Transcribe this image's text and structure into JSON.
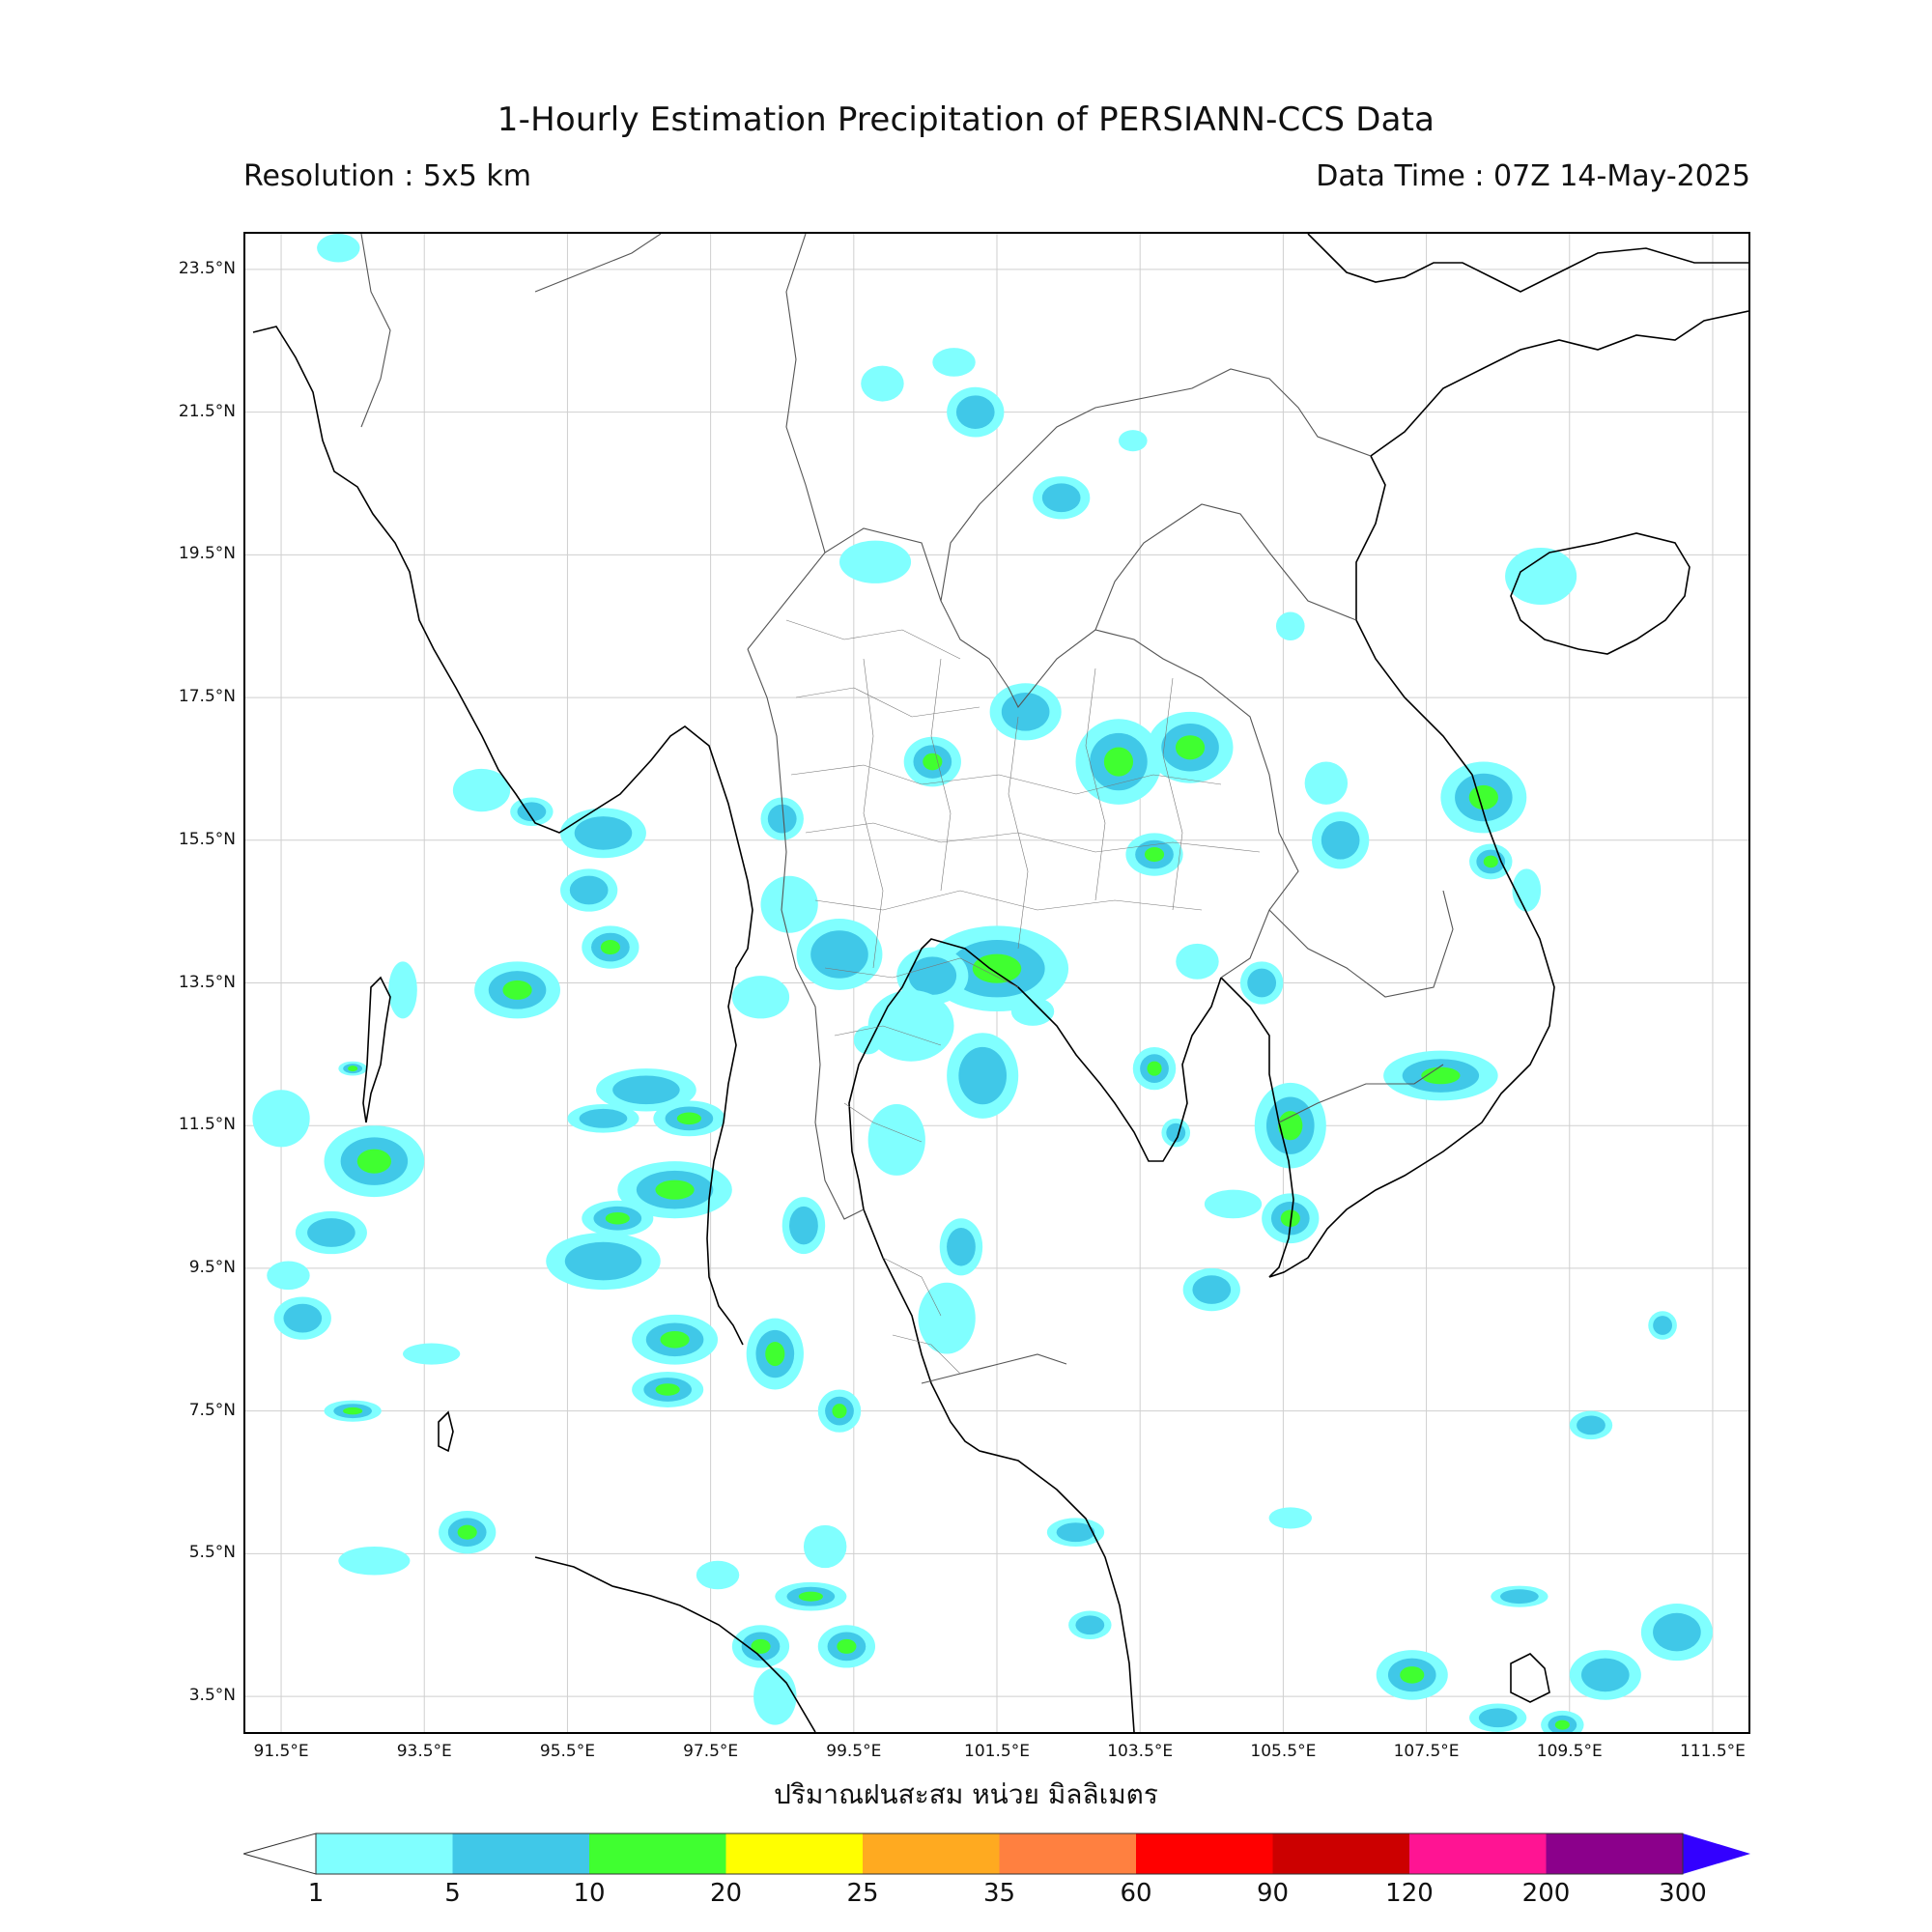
{
  "header": {
    "title": "1-Hourly Estimation Precipitation of PERSIANN-CCS Data",
    "resolution": "Resolution : 5x5 km",
    "data_time": "Data Time : 07Z 14-May-2025"
  },
  "map": {
    "lon_range": [
      91.0,
      112.0
    ],
    "lat_range": [
      3.0,
      24.0
    ],
    "x_ticks": [
      "91.5°E",
      "93.5°E",
      "95.5°E",
      "97.5°E",
      "99.5°E",
      "101.5°E",
      "103.5°E",
      "105.5°E",
      "107.5°E",
      "109.5°E",
      "111.5°E"
    ],
    "y_ticks": [
      "23.5°N",
      "21.5°N",
      "19.5°N",
      "17.5°N",
      "15.5°N",
      "13.5°N",
      "11.5°N",
      "9.5°N",
      "7.5°N",
      "5.5°N",
      "3.5°N"
    ],
    "x_tick_values": [
      91.5,
      93.5,
      95.5,
      97.5,
      99.5,
      101.5,
      103.5,
      105.5,
      107.5,
      109.5,
      111.5
    ],
    "y_tick_values": [
      23.5,
      21.5,
      19.5,
      17.5,
      15.5,
      13.5,
      11.5,
      9.5,
      7.5,
      5.5,
      3.5
    ],
    "grid": true
  },
  "xlabel": "ปริมาณฝนสะสม หน่วย มิลลิเมตร",
  "colorbar": {
    "levels": [
      "1",
      "5",
      "10",
      "20",
      "25",
      "35",
      "60",
      "90",
      "120",
      "200",
      "300"
    ],
    "colors": [
      "#80ffff",
      "#40c8e8",
      "#40ff30",
      "#ffff00",
      "#ffaa20",
      "#ff8040",
      "#ff0000",
      "#cc0000",
      "#ff1493",
      "#8b008b",
      "#3300ff"
    ],
    "under_color": "#ffffff"
  },
  "rain_cells": [
    {
      "lon": 92.8,
      "lat": 11.0,
      "rx": 0.7,
      "ry": 0.5,
      "level": 3
    },
    {
      "lon": 92.2,
      "lat": 10.0,
      "rx": 0.5,
      "ry": 0.3,
      "level": 2
    },
    {
      "lon": 93.2,
      "lat": 13.4,
      "rx": 0.2,
      "ry": 0.4,
      "level": 1
    },
    {
      "lon": 94.8,
      "lat": 13.4,
      "rx": 0.6,
      "ry": 0.4,
      "level": 3
    },
    {
      "lon": 96.0,
      "lat": 15.6,
      "rx": 0.6,
      "ry": 0.35,
      "level": 2
    },
    {
      "lon": 96.1,
      "lat": 14.0,
      "rx": 0.4,
      "ry": 0.3,
      "level": 3
    },
    {
      "lon": 95.8,
      "lat": 14.8,
      "rx": 0.4,
      "ry": 0.3,
      "level": 2
    },
    {
      "lon": 96.6,
      "lat": 12.0,
      "rx": 0.7,
      "ry": 0.3,
      "level": 2
    },
    {
      "lon": 97.2,
      "lat": 11.6,
      "rx": 0.5,
      "ry": 0.25,
      "level": 4
    },
    {
      "lon": 96.0,
      "lat": 11.6,
      "rx": 0.5,
      "ry": 0.2,
      "level": 2
    },
    {
      "lon": 97.0,
      "lat": 10.6,
      "rx": 0.8,
      "ry": 0.4,
      "level": 3
    },
    {
      "lon": 96.0,
      "lat": 9.6,
      "rx": 0.8,
      "ry": 0.4,
      "level": 2
    },
    {
      "lon": 96.2,
      "lat": 10.2,
      "rx": 0.5,
      "ry": 0.25,
      "level": 3
    },
    {
      "lon": 97.0,
      "lat": 8.5,
      "rx": 0.6,
      "ry": 0.35,
      "level": 3
    },
    {
      "lon": 96.9,
      "lat": 7.8,
      "rx": 0.5,
      "ry": 0.25,
      "level": 3
    },
    {
      "lon": 98.4,
      "lat": 8.3,
      "rx": 0.4,
      "ry": 0.5,
      "level": 3
    },
    {
      "lon": 98.2,
      "lat": 13.3,
      "rx": 0.4,
      "ry": 0.3,
      "level": 1
    },
    {
      "lon": 98.6,
      "lat": 14.6,
      "rx": 0.4,
      "ry": 0.4,
      "level": 1
    },
    {
      "lon": 98.5,
      "lat": 15.8,
      "rx": 0.3,
      "ry": 0.3,
      "level": 2
    },
    {
      "lon": 99.3,
      "lat": 13.9,
      "rx": 0.6,
      "ry": 0.5,
      "level": 2
    },
    {
      "lon": 101.5,
      "lat": 13.7,
      "rx": 1.0,
      "ry": 0.6,
      "level": 3
    },
    {
      "lon": 100.6,
      "lat": 13.6,
      "rx": 0.5,
      "ry": 0.4,
      "level": 2
    },
    {
      "lon": 101.3,
      "lat": 12.2,
      "rx": 0.5,
      "ry": 0.6,
      "level": 2
    },
    {
      "lon": 100.3,
      "lat": 12.9,
      "rx": 0.6,
      "ry": 0.5,
      "level": 1
    },
    {
      "lon": 100.6,
      "lat": 16.6,
      "rx": 0.4,
      "ry": 0.35,
      "level": 4
    },
    {
      "lon": 101.9,
      "lat": 17.3,
      "rx": 0.5,
      "ry": 0.4,
      "level": 2
    },
    {
      "lon": 103.2,
      "lat": 16.6,
      "rx": 0.6,
      "ry": 0.6,
      "level": 3
    },
    {
      "lon": 104.2,
      "lat": 16.8,
      "rx": 0.6,
      "ry": 0.5,
      "level": 4
    },
    {
      "lon": 103.7,
      "lat": 15.3,
      "rx": 0.4,
      "ry": 0.3,
      "level": 3
    },
    {
      "lon": 102.4,
      "lat": 20.3,
      "rx": 0.4,
      "ry": 0.3,
      "level": 2
    },
    {
      "lon": 99.8,
      "lat": 19.4,
      "rx": 0.5,
      "ry": 0.3,
      "level": 1
    },
    {
      "lon": 101.2,
      "lat": 21.5,
      "rx": 0.4,
      "ry": 0.35,
      "level": 2
    },
    {
      "lon": 99.9,
      "lat": 21.9,
      "rx": 0.3,
      "ry": 0.25,
      "level": 1
    },
    {
      "lon": 100.9,
      "lat": 22.2,
      "rx": 0.3,
      "ry": 0.2,
      "level": 1
    },
    {
      "lon": 109.1,
      "lat": 19.2,
      "rx": 0.5,
      "ry": 0.4,
      "level": 1
    },
    {
      "lon": 108.3,
      "lat": 16.1,
      "rx": 0.6,
      "ry": 0.5,
      "level": 3
    },
    {
      "lon": 108.4,
      "lat": 15.2,
      "rx": 0.3,
      "ry": 0.25,
      "level": 4
    },
    {
      "lon": 107.7,
      "lat": 12.2,
      "rx": 0.8,
      "ry": 0.35,
      "level": 3
    },
    {
      "lon": 105.6,
      "lat": 11.5,
      "rx": 0.5,
      "ry": 0.6,
      "level": 3
    },
    {
      "lon": 105.6,
      "lat": 10.2,
      "rx": 0.4,
      "ry": 0.35,
      "level": 3
    },
    {
      "lon": 104.5,
      "lat": 9.2,
      "rx": 0.4,
      "ry": 0.3,
      "level": 2
    },
    {
      "lon": 103.7,
      "lat": 12.3,
      "rx": 0.3,
      "ry": 0.3,
      "level": 3
    },
    {
      "lon": 100.1,
      "lat": 11.3,
      "rx": 0.4,
      "ry": 0.5,
      "level": 1
    },
    {
      "lon": 100.8,
      "lat": 8.8,
      "rx": 0.4,
      "ry": 0.5,
      "level": 1
    },
    {
      "lon": 101.0,
      "lat": 9.8,
      "rx": 0.3,
      "ry": 0.4,
      "level": 2
    },
    {
      "lon": 98.2,
      "lat": 4.2,
      "rx": 0.4,
      "ry": 0.3,
      "level": 3
    },
    {
      "lon": 98.9,
      "lat": 4.9,
      "rx": 0.5,
      "ry": 0.2,
      "level": 3
    },
    {
      "lon": 99.4,
      "lat": 4.2,
      "rx": 0.4,
      "ry": 0.3,
      "level": 3
    },
    {
      "lon": 98.4,
      "lat": 3.5,
      "rx": 0.3,
      "ry": 0.4,
      "level": 1
    },
    {
      "lon": 94.1,
      "lat": 5.8,
      "rx": 0.4,
      "ry": 0.3,
      "level": 3
    },
    {
      "lon": 92.8,
      "lat": 5.4,
      "rx": 0.5,
      "ry": 0.2,
      "level": 1
    },
    {
      "lon": 92.5,
      "lat": 7.5,
      "rx": 0.4,
      "ry": 0.15,
      "level": 3
    },
    {
      "lon": 91.6,
      "lat": 9.4,
      "rx": 0.3,
      "ry": 0.2,
      "level": 1
    },
    {
      "lon": 91.8,
      "lat": 8.8,
      "rx": 0.4,
      "ry": 0.3,
      "level": 2
    },
    {
      "lon": 92.5,
      "lat": 12.3,
      "rx": 0.2,
      "ry": 0.1,
      "level": 3
    },
    {
      "lon": 94.3,
      "lat": 16.2,
      "rx": 0.4,
      "ry": 0.3,
      "level": 1
    },
    {
      "lon": 95.0,
      "lat": 15.9,
      "rx": 0.3,
      "ry": 0.2,
      "level": 2
    },
    {
      "lon": 107.3,
      "lat": 3.8,
      "rx": 0.5,
      "ry": 0.35,
      "level": 3
    },
    {
      "lon": 110.0,
      "lat": 3.8,
      "rx": 0.5,
      "ry": 0.35,
      "level": 2
    },
    {
      "lon": 111.0,
      "lat": 4.4,
      "rx": 0.5,
      "ry": 0.4,
      "level": 2
    },
    {
      "lon": 109.4,
      "lat": 3.1,
      "rx": 0.3,
      "ry": 0.2,
      "level": 3
    },
    {
      "lon": 108.5,
      "lat": 3.2,
      "rx": 0.4,
      "ry": 0.2,
      "level": 2
    },
    {
      "lon": 108.8,
      "lat": 4.9,
      "rx": 0.4,
      "ry": 0.15,
      "level": 2
    },
    {
      "lon": 105.6,
      "lat": 6.0,
      "rx": 0.3,
      "ry": 0.15,
      "level": 1
    },
    {
      "lon": 102.6,
      "lat": 5.8,
      "rx": 0.4,
      "ry": 0.2,
      "level": 2
    },
    {
      "lon": 102.8,
      "lat": 4.5,
      "rx": 0.3,
      "ry": 0.2,
      "level": 2
    },
    {
      "lon": 104.3,
      "lat": 13.8,
      "rx": 0.3,
      "ry": 0.25,
      "level": 1
    },
    {
      "lon": 105.2,
      "lat": 13.5,
      "rx": 0.3,
      "ry": 0.3,
      "level": 2
    },
    {
      "lon": 106.3,
      "lat": 15.5,
      "rx": 0.4,
      "ry": 0.4,
      "level": 2
    },
    {
      "lon": 104.8,
      "lat": 10.4,
      "rx": 0.4,
      "ry": 0.2,
      "level": 1
    },
    {
      "lon": 105.6,
      "lat": 18.5,
      "rx": 0.2,
      "ry": 0.2,
      "level": 1
    },
    {
      "lon": 103.4,
      "lat": 21.1,
      "rx": 0.2,
      "ry": 0.15,
      "level": 1
    },
    {
      "lon": 102.0,
      "lat": 13.1,
      "rx": 0.3,
      "ry": 0.2,
      "level": 1
    },
    {
      "lon": 104.0,
      "lat": 11.4,
      "rx": 0.2,
      "ry": 0.2,
      "level": 2
    },
    {
      "lon": 99.7,
      "lat": 12.7,
      "rx": 0.2,
      "ry": 0.2,
      "level": 1
    },
    {
      "lon": 98.8,
      "lat": 10.1,
      "rx": 0.3,
      "ry": 0.4,
      "level": 2
    },
    {
      "lon": 99.3,
      "lat": 7.5,
      "rx": 0.3,
      "ry": 0.3,
      "level": 3
    },
    {
      "lon": 91.5,
      "lat": 11.6,
      "rx": 0.4,
      "ry": 0.4,
      "level": 1
    },
    {
      "lon": 93.6,
      "lat": 8.3,
      "rx": 0.4,
      "ry": 0.15,
      "level": 1
    },
    {
      "lon": 97.6,
      "lat": 5.2,
      "rx": 0.3,
      "ry": 0.2,
      "level": 1
    },
    {
      "lon": 99.1,
      "lat": 5.6,
      "rx": 0.3,
      "ry": 0.3,
      "level": 1
    },
    {
      "lon": 106.1,
      "lat": 16.3,
      "rx": 0.3,
      "ry": 0.3,
      "level": 1
    },
    {
      "lon": 108.9,
      "lat": 14.8,
      "rx": 0.2,
      "ry": 0.3,
      "level": 1
    },
    {
      "lon": 109.8,
      "lat": 7.3,
      "rx": 0.3,
      "ry": 0.2,
      "level": 2
    },
    {
      "lon": 110.8,
      "lat": 8.7,
      "rx": 0.2,
      "ry": 0.2,
      "level": 2
    },
    {
      "lon": 92.3,
      "lat": 23.8,
      "rx": 0.3,
      "ry": 0.2,
      "level": 1
    }
  ]
}
